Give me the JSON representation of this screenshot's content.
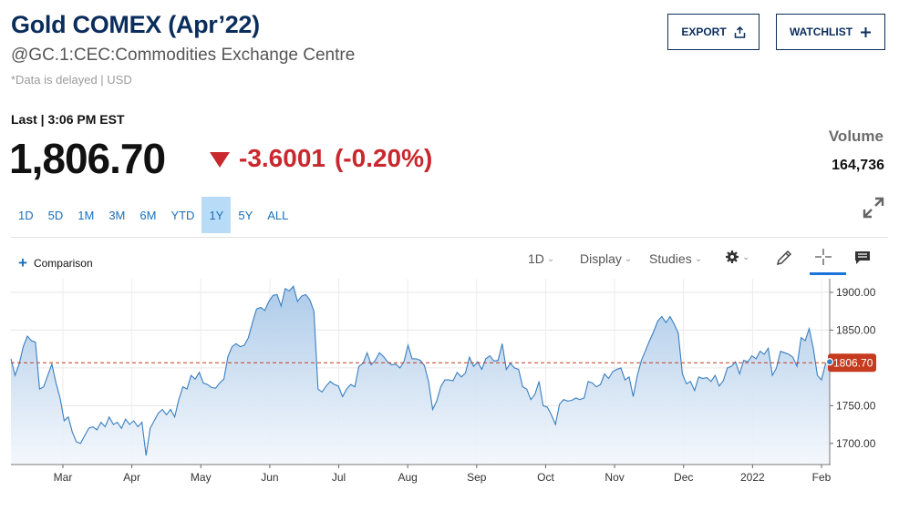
{
  "header": {
    "title": "Gold COMEX (Apr’22)",
    "subtitle": "@GC.1:CEC:Commodities Exchange Centre",
    "delay_note": "*Data is delayed | USD",
    "export_label": "EXPORT",
    "watchlist_label": "WATCHLIST"
  },
  "quote": {
    "last_label": "Last | 3:06 PM EST",
    "price": "1,806.70",
    "change": "-3.6001",
    "change_pct": "(-0.20%)",
    "volume_label": "Volume",
    "volume_value": "164,736"
  },
  "ranges": [
    "1D",
    "5D",
    "1M",
    "3M",
    "6M",
    "YTD",
    "1Y",
    "5Y",
    "ALL"
  ],
  "active_range": "1Y",
  "toolbar": {
    "comparison_label": "Comparison",
    "interval_label": "1D",
    "display_label": "Display",
    "studies_label": "Studies"
  },
  "colors": {
    "brand": "#0b2d5c",
    "negative": "#c8282e",
    "line": "#3a7fc0",
    "area_top": "#a9c8e8",
    "area_bottom": "#f3f7fc",
    "tag": "#c63b1f",
    "link": "#1a6fb8"
  },
  "chart_data": {
    "type": "area",
    "x_labels": [
      "Mar",
      "Apr",
      "May",
      "Jun",
      "Jul",
      "Aug",
      "Sep",
      "Oct",
      "Nov",
      "Dec",
      "2022",
      "Feb"
    ],
    "y_ticks": [
      "1900.00",
      "1850.00",
      "1800.00",
      "1750.00",
      "1700.00"
    ],
    "ylim": [
      1672,
      1918
    ],
    "reference_value": 1806.7,
    "reference_label": "1806.70",
    "grid": true,
    "series": [
      {
        "values": [
          1812,
          1790,
          1805,
          1828,
          1842,
          1836,
          1834,
          1772,
          1775,
          1790,
          1805,
          1780,
          1760,
          1730,
          1735,
          1715,
          1702,
          1700,
          1710,
          1720,
          1722,
          1718,
          1728,
          1722,
          1735,
          1725,
          1728,
          1720,
          1732,
          1725,
          1730,
          1722,
          1728,
          1684,
          1720,
          1730,
          1740,
          1745,
          1738,
          1745,
          1735,
          1758,
          1775,
          1772,
          1790,
          1785,
          1794,
          1780,
          1778,
          1774,
          1773,
          1780,
          1785,
          1815,
          1828,
          1832,
          1828,
          1830,
          1840,
          1860,
          1878,
          1880,
          1876,
          1888,
          1896,
          1897,
          1882,
          1905,
          1902,
          1908,
          1888,
          1895,
          1897,
          1890,
          1875,
          1772,
          1768,
          1776,
          1782,
          1778,
          1776,
          1762,
          1772,
          1778,
          1775,
          1802,
          1806,
          1820,
          1804,
          1810,
          1820,
          1815,
          1808,
          1804,
          1805,
          1800,
          1808,
          1830,
          1812,
          1812,
          1810,
          1803,
          1782,
          1745,
          1756,
          1775,
          1784,
          1784,
          1783,
          1794,
          1788,
          1793,
          1814,
          1802,
          1808,
          1798,
          1812,
          1816,
          1809,
          1810,
          1832,
          1798,
          1806,
          1800,
          1798,
          1775,
          1772,
          1758,
          1765,
          1782,
          1750,
          1748,
          1738,
          1725,
          1752,
          1758,
          1756,
          1757,
          1760,
          1758,
          1760,
          1782,
          1780,
          1775,
          1778,
          1792,
          1786,
          1795,
          1798,
          1800,
          1784,
          1788,
          1762,
          1790,
          1810,
          1823,
          1836,
          1848,
          1862,
          1868,
          1860,
          1868,
          1858,
          1846,
          1792,
          1779,
          1782,
          1770,
          1788,
          1786,
          1787,
          1782,
          1790,
          1776,
          1783,
          1800,
          1802,
          1808,
          1792,
          1810,
          1808,
          1816,
          1812,
          1822,
          1818,
          1826,
          1790,
          1800,
          1822,
          1820,
          1818,
          1814,
          1802,
          1840,
          1836,
          1852,
          1826,
          1790,
          1784,
          1806,
          1808
        ]
      }
    ]
  }
}
